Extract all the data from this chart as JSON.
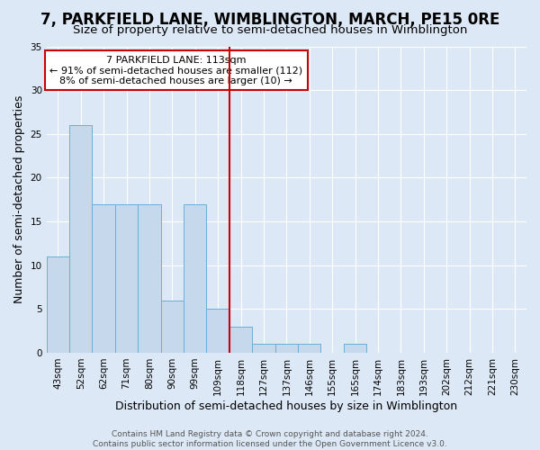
{
  "title": "7, PARKFIELD LANE, WIMBLINGTON, MARCH, PE15 0RE",
  "subtitle": "Size of property relative to semi-detached houses in Wimblington",
  "xlabel": "Distribution of semi-detached houses by size in Wimblington",
  "ylabel": "Number of semi-detached properties",
  "bin_labels": [
    "43sqm",
    "52sqm",
    "62sqm",
    "71sqm",
    "80sqm",
    "90sqm",
    "99sqm",
    "109sqm",
    "118sqm",
    "127sqm",
    "137sqm",
    "146sqm",
    "155sqm",
    "165sqm",
    "174sqm",
    "183sqm",
    "193sqm",
    "202sqm",
    "212sqm",
    "221sqm",
    "230sqm"
  ],
  "bar_values": [
    11,
    26,
    17,
    17,
    17,
    6,
    17,
    5,
    3,
    1,
    1,
    1,
    0,
    1,
    0,
    0,
    0,
    0,
    0,
    0,
    0
  ],
  "bar_color": "#c6d9ec",
  "bar_edge_color": "#6baed6",
  "vline_x": 7.5,
  "vline_color": "#cc0000",
  "ylim": [
    0,
    35
  ],
  "yticks": [
    0,
    5,
    10,
    15,
    20,
    25,
    30,
    35
  ],
  "annotation_text": "7 PARKFIELD LANE: 113sqm\n← 91% of semi-detached houses are smaller (112)\n8% of semi-detached houses are larger (10) →",
  "annotation_box_edge": "#cc0000",
  "footer_text": "Contains HM Land Registry data © Crown copyright and database right 2024.\nContains public sector information licensed under the Open Government Licence v3.0.",
  "background_color": "#dce8f5",
  "grid_color": "#ffffff",
  "title_fontsize": 12,
  "subtitle_fontsize": 9.5,
  "axis_label_fontsize": 9,
  "tick_fontsize": 7.5,
  "annotation_fontsize": 8,
  "footer_fontsize": 6.5
}
